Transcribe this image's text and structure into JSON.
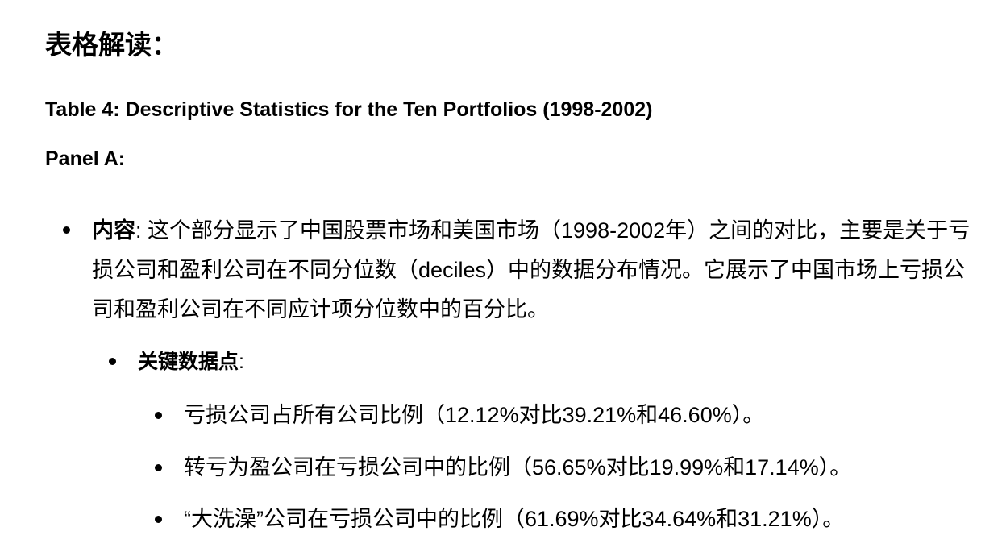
{
  "heading": "表格解读：",
  "table_title": "Table 4: Descriptive Statistics for the Ten Portfolios (1998-2002)",
  "panel_title": "Panel A:",
  "content": {
    "label": "内容",
    "separator": ": ",
    "text": "这个部分显示了中国股票市场和美国市场（1998-2002年）之间的对比，主要是关于亏损公司和盈利公司在不同分位数（deciles）中的数据分布情况。它展示了中国市场上亏损公司和盈利公司在不同应计项分位数中的百分比。"
  },
  "key_points": {
    "label": "关键数据点",
    "suffix": ":",
    "items": [
      "亏损公司占所有公司比例（12.12%对比39.21%和46.60%）。",
      "转亏为盈公司在亏损公司中的比例（56.65%对比19.99%和17.14%）。",
      "“大洗澡”公司在亏损公司中的比例（61.69%对比34.64%和31.21%）。"
    ]
  }
}
